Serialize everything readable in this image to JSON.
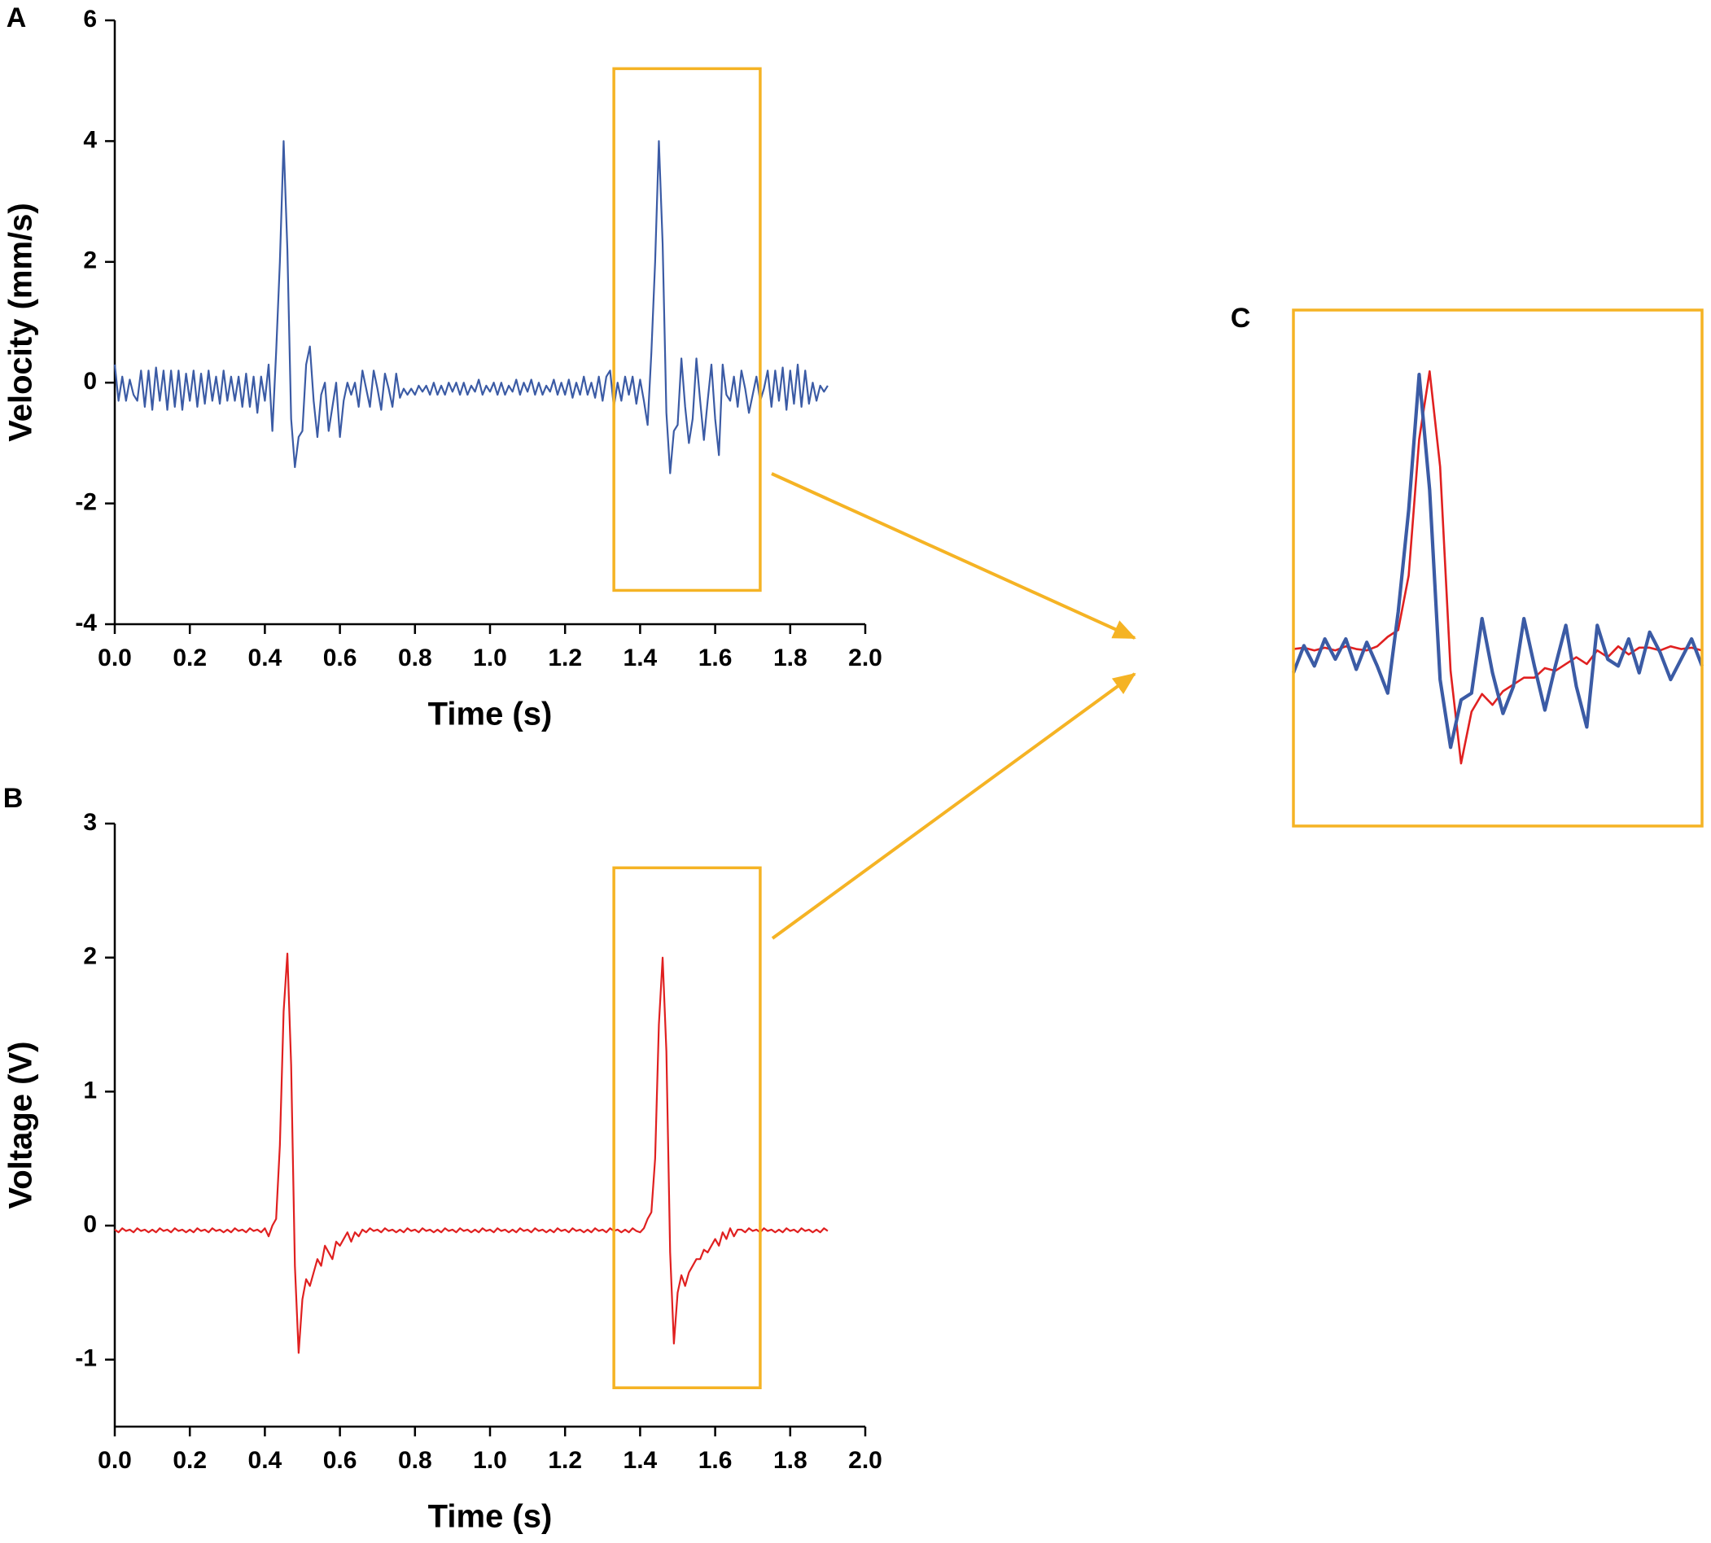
{
  "chart_data": [
    {
      "type": "line",
      "title": "A",
      "x_label": "Time (s)",
      "y_label": "Velocity (mm/s)",
      "xlim": [
        0,
        2
      ],
      "ylim": [
        -4,
        6
      ],
      "xticks": [
        {
          "value": 0,
          "label": "0.0"
        },
        0.2,
        0.4,
        0.6,
        0.8,
        {
          "value": 1,
          "label": "1.0"
        },
        1.2,
        1.4,
        1.6,
        1.8,
        {
          "value": 2,
          "label": "2.0"
        }
      ],
      "yticks": [
        -4,
        -2,
        0,
        2,
        4,
        6
      ],
      "highlight_ylim": [
        -3.44,
        5.2
      ],
      "x": [
        0,
        0.01,
        0.02,
        0.03,
        0.04,
        0.05,
        0.06,
        0.07,
        0.08,
        0.09,
        0.1,
        0.11,
        0.12,
        0.13,
        0.14,
        0.15,
        0.16,
        0.17,
        0.18,
        0.19,
        0.2,
        0.21,
        0.22,
        0.23,
        0.24,
        0.25,
        0.26,
        0.27,
        0.28,
        0.29,
        0.3,
        0.31,
        0.32,
        0.33,
        0.34,
        0.35,
        0.36,
        0.37,
        0.38,
        0.39,
        0.4,
        0.41,
        0.42,
        0.43,
        0.44,
        0.45,
        0.46,
        0.47,
        0.48,
        0.49,
        0.5,
        0.51,
        0.52,
        0.53,
        0.54,
        0.55,
        0.56,
        0.57,
        0.58,
        0.59,
        0.6,
        0.61,
        0.62,
        0.63,
        0.64,
        0.65,
        0.66,
        0.67,
        0.68,
        0.69,
        0.7,
        0.71,
        0.72,
        0.73,
        0.74,
        0.75,
        0.76,
        0.77,
        0.78,
        0.79,
        0.8,
        0.81,
        0.82,
        0.83,
        0.84,
        0.85,
        0.86,
        0.87,
        0.88,
        0.89,
        0.9,
        0.91,
        0.92,
        0.93,
        0.94,
        0.95,
        0.96,
        0.97,
        0.98,
        0.99,
        1,
        1.01,
        1.02,
        1.03,
        1.04,
        1.05,
        1.06,
        1.07,
        1.08,
        1.09,
        1.1,
        1.11,
        1.12,
        1.13,
        1.14,
        1.15,
        1.16,
        1.17,
        1.18,
        1.19,
        1.2,
        1.21,
        1.22,
        1.23,
        1.24,
        1.25,
        1.26,
        1.27,
        1.28,
        1.29,
        1.3,
        1.31,
        1.32,
        1.33,
        1.34,
        1.35,
        1.36,
        1.37,
        1.38,
        1.39,
        1.4,
        1.41,
        1.42,
        1.43,
        1.44,
        1.45,
        1.46,
        1.47,
        1.48,
        1.49,
        1.5,
        1.51,
        1.52,
        1.53,
        1.54,
        1.55,
        1.56,
        1.57,
        1.58,
        1.59,
        1.6,
        1.61,
        1.62,
        1.63,
        1.64,
        1.65,
        1.66,
        1.67,
        1.68,
        1.69,
        1.7,
        1.71,
        1.72,
        1.73,
        1.74,
        1.75,
        1.76,
        1.77,
        1.78,
        1.79,
        1.8,
        1.81,
        1.82,
        1.83,
        1.84,
        1.85,
        1.86,
        1.87,
        1.88,
        1.89,
        1.9
      ],
      "series": [
        {
          "color": "#3b5ba5",
          "values": [
            0.3,
            -0.3,
            0.1,
            -0.3,
            0.05,
            -0.2,
            -0.3,
            0.2,
            -0.4,
            0.2,
            -0.45,
            0.25,
            -0.3,
            0.2,
            -0.45,
            0.2,
            -0.4,
            0.2,
            -0.45,
            0.15,
            -0.3,
            0.2,
            -0.4,
            0.15,
            -0.35,
            0.2,
            -0.3,
            0.1,
            -0.35,
            0.2,
            -0.3,
            0.1,
            -0.3,
            0.1,
            -0.4,
            0.15,
            -0.4,
            0.1,
            -0.5,
            0.1,
            -0.3,
            0.3,
            -0.8,
            0.5,
            2.0,
            4.0,
            2.2,
            -0.6,
            -1.4,
            -0.9,
            -0.8,
            0.3,
            0.6,
            -0.3,
            -0.9,
            -0.2,
            0.0,
            -0.8,
            -0.4,
            0.0,
            -0.9,
            -0.3,
            0.0,
            -0.2,
            0.0,
            -0.4,
            0.2,
            -0.1,
            -0.4,
            0.2,
            -0.1,
            -0.45,
            0.15,
            -0.1,
            -0.4,
            0.15,
            -0.25,
            -0.1,
            -0.2,
            -0.1,
            -0.2,
            -0.05,
            -0.15,
            -0.05,
            -0.2,
            0.0,
            -0.2,
            -0.05,
            -0.2,
            0.0,
            -0.15,
            0.0,
            -0.2,
            0.0,
            -0.2,
            -0.05,
            -0.15,
            0.05,
            -0.2,
            -0.05,
            -0.15,
            0.0,
            -0.2,
            0.0,
            -0.2,
            -0.05,
            -0.15,
            0.05,
            -0.2,
            0.0,
            -0.15,
            0.05,
            -0.2,
            0.0,
            -0.2,
            -0.05,
            -0.15,
            0.05,
            -0.2,
            0.0,
            -0.2,
            0.05,
            -0.25,
            0.0,
            -0.2,
            0.1,
            -0.2,
            0.0,
            -0.25,
            0.1,
            -0.3,
            0.1,
            0.2,
            -0.4,
            0.0,
            -0.3,
            0.1,
            -0.2,
            0.1,
            -0.35,
            0.05,
            -0.3,
            -0.7,
            0.5,
            2.0,
            4.0,
            2.3,
            -0.5,
            -1.5,
            -0.8,
            -0.7,
            0.4,
            -0.4,
            -1.0,
            -0.6,
            0.4,
            -0.3,
            -0.95,
            -0.3,
            0.3,
            -0.6,
            -1.2,
            0.3,
            -0.2,
            -0.3,
            0.1,
            -0.4,
            0.2,
            -0.1,
            -0.5,
            -0.2,
            0.1,
            -0.3,
            -0.1,
            0.2,
            -0.4,
            0.2,
            -0.3,
            0.25,
            -0.45,
            0.2,
            -0.35,
            0.3,
            -0.4,
            0.2,
            -0.35,
            0.0,
            -0.3,
            -0.05,
            -0.15,
            -0.05
          ]
        }
      ]
    },
    {
      "type": "line",
      "title": "B",
      "x_label": "Time (s)",
      "y_label": "Voltage (V)",
      "xlim": [
        0,
        2
      ],
      "ylim": [
        -1.5,
        3
      ],
      "xticks": [
        {
          "value": 0,
          "label": "0.0"
        },
        0.2,
        0.4,
        0.6,
        0.8,
        {
          "value": 1,
          "label": "1.0"
        },
        1.2,
        1.4,
        1.6,
        1.8,
        {
          "value": 2,
          "label": "2.0"
        }
      ],
      "yticks": [
        -1,
        0,
        1,
        2,
        3
      ],
      "highlight_ylim": [
        -1.21,
        2.67
      ],
      "x": [
        0,
        0.01,
        0.02,
        0.03,
        0.04,
        0.05,
        0.06,
        0.07,
        0.08,
        0.09,
        0.1,
        0.11,
        0.12,
        0.13,
        0.14,
        0.15,
        0.16,
        0.17,
        0.18,
        0.19,
        0.2,
        0.21,
        0.22,
        0.23,
        0.24,
        0.25,
        0.26,
        0.27,
        0.28,
        0.29,
        0.3,
        0.31,
        0.32,
        0.33,
        0.34,
        0.35,
        0.36,
        0.37,
        0.38,
        0.39,
        0.4,
        0.41,
        0.42,
        0.43,
        0.44,
        0.45,
        0.46,
        0.47,
        0.48,
        0.49,
        0.5,
        0.51,
        0.52,
        0.53,
        0.54,
        0.55,
        0.56,
        0.57,
        0.58,
        0.59,
        0.6,
        0.61,
        0.62,
        0.63,
        0.64,
        0.65,
        0.66,
        0.67,
        0.68,
        0.69,
        0.7,
        0.71,
        0.72,
        0.73,
        0.74,
        0.75,
        0.76,
        0.77,
        0.78,
        0.79,
        0.8,
        0.81,
        0.82,
        0.83,
        0.84,
        0.85,
        0.86,
        0.87,
        0.88,
        0.89,
        0.9,
        0.91,
        0.92,
        0.93,
        0.94,
        0.95,
        0.96,
        0.97,
        0.98,
        0.99,
        1,
        1.01,
        1.02,
        1.03,
        1.04,
        1.05,
        1.06,
        1.07,
        1.08,
        1.09,
        1.1,
        1.11,
        1.12,
        1.13,
        1.14,
        1.15,
        1.16,
        1.17,
        1.18,
        1.19,
        1.2,
        1.21,
        1.22,
        1.23,
        1.24,
        1.25,
        1.26,
        1.27,
        1.28,
        1.29,
        1.3,
        1.31,
        1.32,
        1.33,
        1.34,
        1.35,
        1.36,
        1.37,
        1.38,
        1.39,
        1.4,
        1.41,
        1.42,
        1.43,
        1.44,
        1.45,
        1.46,
        1.47,
        1.48,
        1.49,
        1.5,
        1.51,
        1.52,
        1.53,
        1.54,
        1.55,
        1.56,
        1.57,
        1.58,
        1.59,
        1.6,
        1.61,
        1.62,
        1.63,
        1.64,
        1.65,
        1.66,
        1.67,
        1.68,
        1.69,
        1.7,
        1.71,
        1.72,
        1.73,
        1.74,
        1.75,
        1.76,
        1.77,
        1.78,
        1.79,
        1.8,
        1.81,
        1.82,
        1.83,
        1.84,
        1.85,
        1.86,
        1.87,
        1.88,
        1.89,
        1.9
      ],
      "series": [
        {
          "color": "#e02020",
          "values": [
            -0.03,
            -0.05,
            -0.02,
            -0.04,
            -0.03,
            -0.05,
            -0.02,
            -0.04,
            -0.03,
            -0.05,
            -0.03,
            -0.05,
            -0.02,
            -0.04,
            -0.03,
            -0.05,
            -0.02,
            -0.04,
            -0.03,
            -0.05,
            -0.03,
            -0.05,
            -0.02,
            -0.04,
            -0.03,
            -0.05,
            -0.02,
            -0.04,
            -0.03,
            -0.05,
            -0.03,
            -0.05,
            -0.02,
            -0.04,
            -0.03,
            -0.05,
            -0.02,
            -0.04,
            -0.03,
            -0.05,
            -0.02,
            -0.08,
            0.0,
            0.05,
            0.6,
            1.6,
            2.03,
            1.2,
            -0.3,
            -0.95,
            -0.55,
            -0.4,
            -0.45,
            -0.35,
            -0.25,
            -0.3,
            -0.15,
            -0.2,
            -0.25,
            -0.12,
            -0.15,
            -0.1,
            -0.05,
            -0.12,
            -0.05,
            -0.08,
            -0.03,
            -0.05,
            -0.02,
            -0.04,
            -0.03,
            -0.05,
            -0.02,
            -0.04,
            -0.03,
            -0.05,
            -0.03,
            -0.05,
            -0.02,
            -0.04,
            -0.03,
            -0.05,
            -0.02,
            -0.04,
            -0.03,
            -0.05,
            -0.03,
            -0.05,
            -0.02,
            -0.04,
            -0.03,
            -0.05,
            -0.02,
            -0.04,
            -0.03,
            -0.05,
            -0.03,
            -0.05,
            -0.02,
            -0.04,
            -0.03,
            -0.05,
            -0.02,
            -0.04,
            -0.03,
            -0.05,
            -0.03,
            -0.05,
            -0.02,
            -0.04,
            -0.03,
            -0.05,
            -0.02,
            -0.04,
            -0.03,
            -0.05,
            -0.03,
            -0.05,
            -0.02,
            -0.04,
            -0.03,
            -0.05,
            -0.02,
            -0.04,
            -0.03,
            -0.05,
            -0.03,
            -0.05,
            -0.02,
            -0.04,
            -0.03,
            -0.05,
            -0.02,
            -0.04,
            -0.03,
            -0.05,
            -0.03,
            -0.05,
            -0.02,
            -0.04,
            -0.05,
            -0.02,
            0.05,
            0.1,
            0.5,
            1.5,
            2.0,
            1.3,
            -0.2,
            -0.88,
            -0.5,
            -0.37,
            -0.45,
            -0.35,
            -0.3,
            -0.25,
            -0.25,
            -0.18,
            -0.2,
            -0.15,
            -0.1,
            -0.15,
            -0.05,
            -0.1,
            -0.02,
            -0.08,
            -0.03,
            -0.03,
            -0.05,
            -0.02,
            -0.04,
            -0.03,
            -0.05,
            -0.02,
            -0.04,
            -0.03,
            -0.05,
            -0.03,
            -0.05,
            -0.02,
            -0.04,
            -0.03,
            -0.05,
            -0.02,
            -0.04,
            -0.03,
            -0.05,
            -0.03,
            -0.05,
            -0.02,
            -0.04
          ]
        }
      ]
    },
    {
      "type": "zoom",
      "title": "C",
      "xlim": [
        1.33,
        1.72
      ],
      "ylim": [
        -2.66,
        4.95
      ],
      "y2lim": [
        -1.34,
        2.45
      ]
    }
  ]
}
